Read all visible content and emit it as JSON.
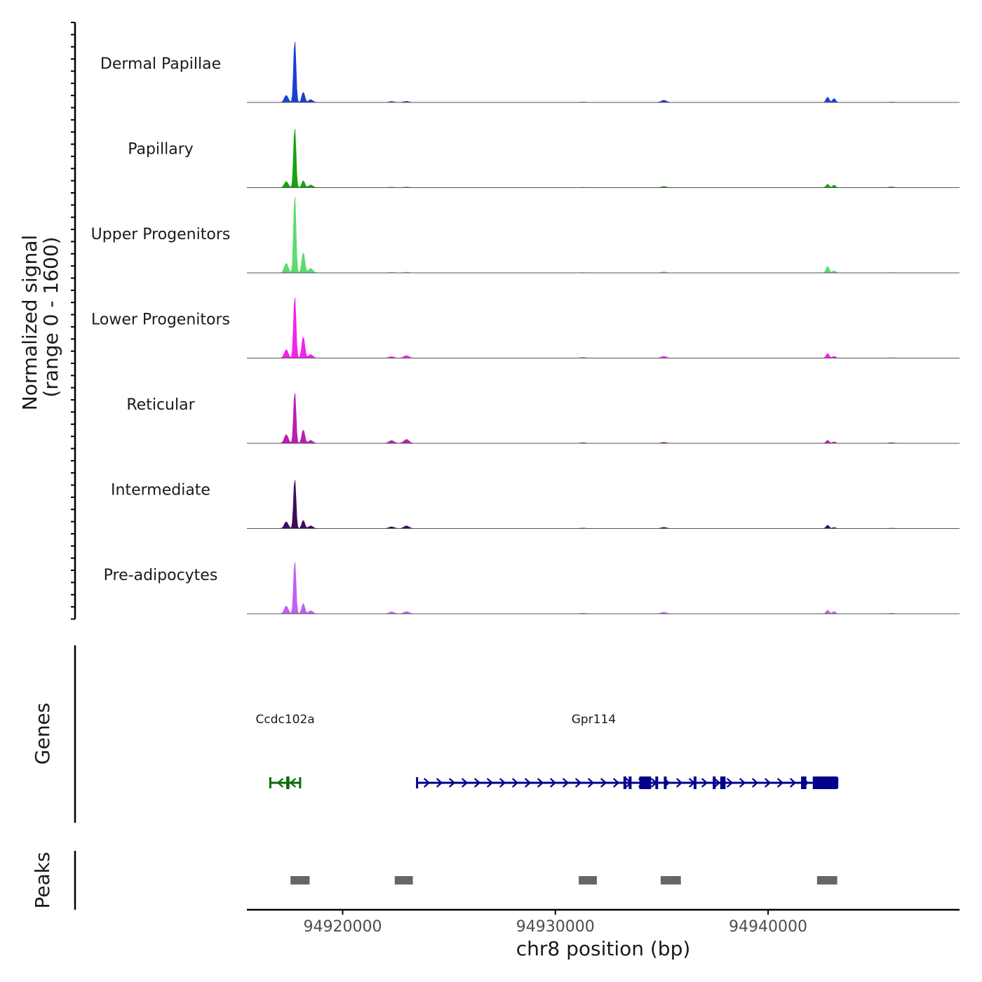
{
  "chart_data": {
    "type": "area",
    "title": "",
    "ylabel_line1": "Normalized signal",
    "ylabel_line2": "(range 0 - 1600)",
    "signal_range": [
      0,
      1600
    ],
    "xlabel": "chr8 position (bp)",
    "xlim": [
      94915500,
      94949000
    ],
    "x_ticks": [
      94920000,
      94930000,
      94940000
    ],
    "x_tick_labels": [
      "94920000",
      "94930000",
      "94940000"
    ],
    "grid": false,
    "peaks_at": [
      [
        94917750,
        1600,
        55
      ],
      [
        94917350,
        180,
        90
      ],
      [
        94918150,
        260,
        70
      ],
      [
        94918500,
        70,
        100
      ],
      [
        94922300,
        60,
        120
      ],
      [
        94923000,
        70,
        120
      ],
      [
        94935100,
        60,
        120
      ],
      [
        94942800,
        150,
        70
      ],
      [
        94943100,
        110,
        70
      ],
      [
        94931300,
        25,
        120
      ],
      [
        94945800,
        25,
        120
      ]
    ],
    "series": [
      {
        "name": "Dermal Papillae",
        "color": "#1a3fd6",
        "scale": 1.0,
        "mods": [
          1,
          1.0,
          1,
          1.0,
          0.4,
          0.4,
          0.9,
          0.9,
          0.9,
          0.3,
          0.3
        ]
      },
      {
        "name": "Papillary",
        "color": "#16a60c",
        "scale": 0.97,
        "mods": [
          1,
          0.9,
          0.7,
          1.0,
          0.2,
          0.2,
          0.5,
          0.6,
          0.6,
          0.2,
          0.8
        ]
      },
      {
        "name": "Upper Progenitors",
        "color": "#5cdc6e",
        "scale": 1.25,
        "mods": [
          1,
          1.1,
          1.6,
          1.3,
          0.2,
          0.2,
          0.3,
          0.9,
          0.4,
          0.2,
          0.2
        ]
      },
      {
        "name": "Lower Progenitors",
        "color": "#f520ec",
        "scale": 1.0,
        "mods": [
          1,
          1.2,
          2.1,
          1.3,
          0.6,
          0.9,
          0.7,
          0.8,
          0.4,
          0.6,
          0.3
        ]
      },
      {
        "name": "Reticular",
        "color": "#b81eb4",
        "scale": 0.83,
        "mods": [
          1,
          1.5,
          1.6,
          1.3,
          1.4,
          1.7,
          0.5,
          0.6,
          0.4,
          0.8,
          0.8
        ]
      },
      {
        "name": "Intermediate",
        "color": "#3d0b5c",
        "scale": 0.8,
        "mods": [
          1,
          1.2,
          1.0,
          1.2,
          0.9,
          1.2,
          0.6,
          0.7,
          0.3,
          0.5,
          0.3
        ]
      },
      {
        "name": "Pre-adipocytes",
        "color": "#c45ef0",
        "scale": 0.85,
        "mods": [
          1,
          1.3,
          1.2,
          1.3,
          0.9,
          0.9,
          0.7,
          0.7,
          0.6,
          0.6,
          0.6
        ]
      }
    ],
    "genes_label": "Genes",
    "genes": [
      {
        "name": "Ccdc102a",
        "strand": "-",
        "start": 94916600,
        "end": 94918000,
        "color": "#0a6b0a",
        "exons": [
          [
            94917350,
            94917500
          ]
        ]
      },
      {
        "name": "Gpr114",
        "strand": "+",
        "start": 94923500,
        "end": 94943250,
        "color": "#00008b",
        "exons": [
          [
            94933200,
            94933260
          ],
          [
            94933450,
            94933520
          ],
          [
            94933950,
            94934500
          ],
          [
            94934700,
            94934800
          ],
          [
            94935100,
            94935200
          ],
          [
            94936500,
            94936600
          ],
          [
            94937400,
            94937480
          ],
          [
            94937750,
            94938000
          ],
          [
            94941550,
            94941800
          ],
          [
            94942100,
            94943250
          ]
        ]
      }
    ],
    "peaks_label": "Peaks",
    "peak_regions": [
      [
        94917550,
        94918450
      ],
      [
        94922450,
        94923300
      ],
      [
        94931100,
        94931950
      ],
      [
        94934950,
        94935900
      ],
      [
        94942300,
        94943250
      ]
    ]
  }
}
